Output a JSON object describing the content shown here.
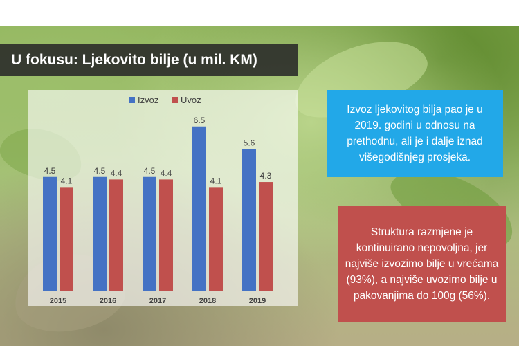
{
  "title": "U fokusu: Ljekovito bilje (u mil. KM)",
  "info_box_blue": "Izvoz ljekovitog bilja pao je u 2019. godini u odnosu na prethodnu, ali je i dalje iznad višegodišnjeg prosjeka.",
  "info_box_red": "Struktura razmjene je kontinuirano nepovoljna, jer najviše izvozimo bilje u vrećama (93%), a najviše uvozimo bilje u pakovanjima do 100g (56%).",
  "colors": {
    "izvoz": "#4472c4",
    "uvoz": "#c0504d",
    "blue_box": "#22a8e8",
    "red_box": "#c0504d"
  },
  "chart_data": {
    "type": "bar",
    "categories": [
      "2015",
      "2016",
      "2017",
      "2018",
      "2019"
    ],
    "series": [
      {
        "name": "Izvoz",
        "values": [
          4.5,
          4.5,
          4.5,
          6.5,
          5.6
        ]
      },
      {
        "name": "Uvoz",
        "values": [
          4.1,
          4.4,
          4.4,
          4.1,
          4.3
        ]
      }
    ],
    "data_labels": true,
    "legend": "top-center",
    "grid": false,
    "ylim": [
      0,
      7
    ]
  }
}
